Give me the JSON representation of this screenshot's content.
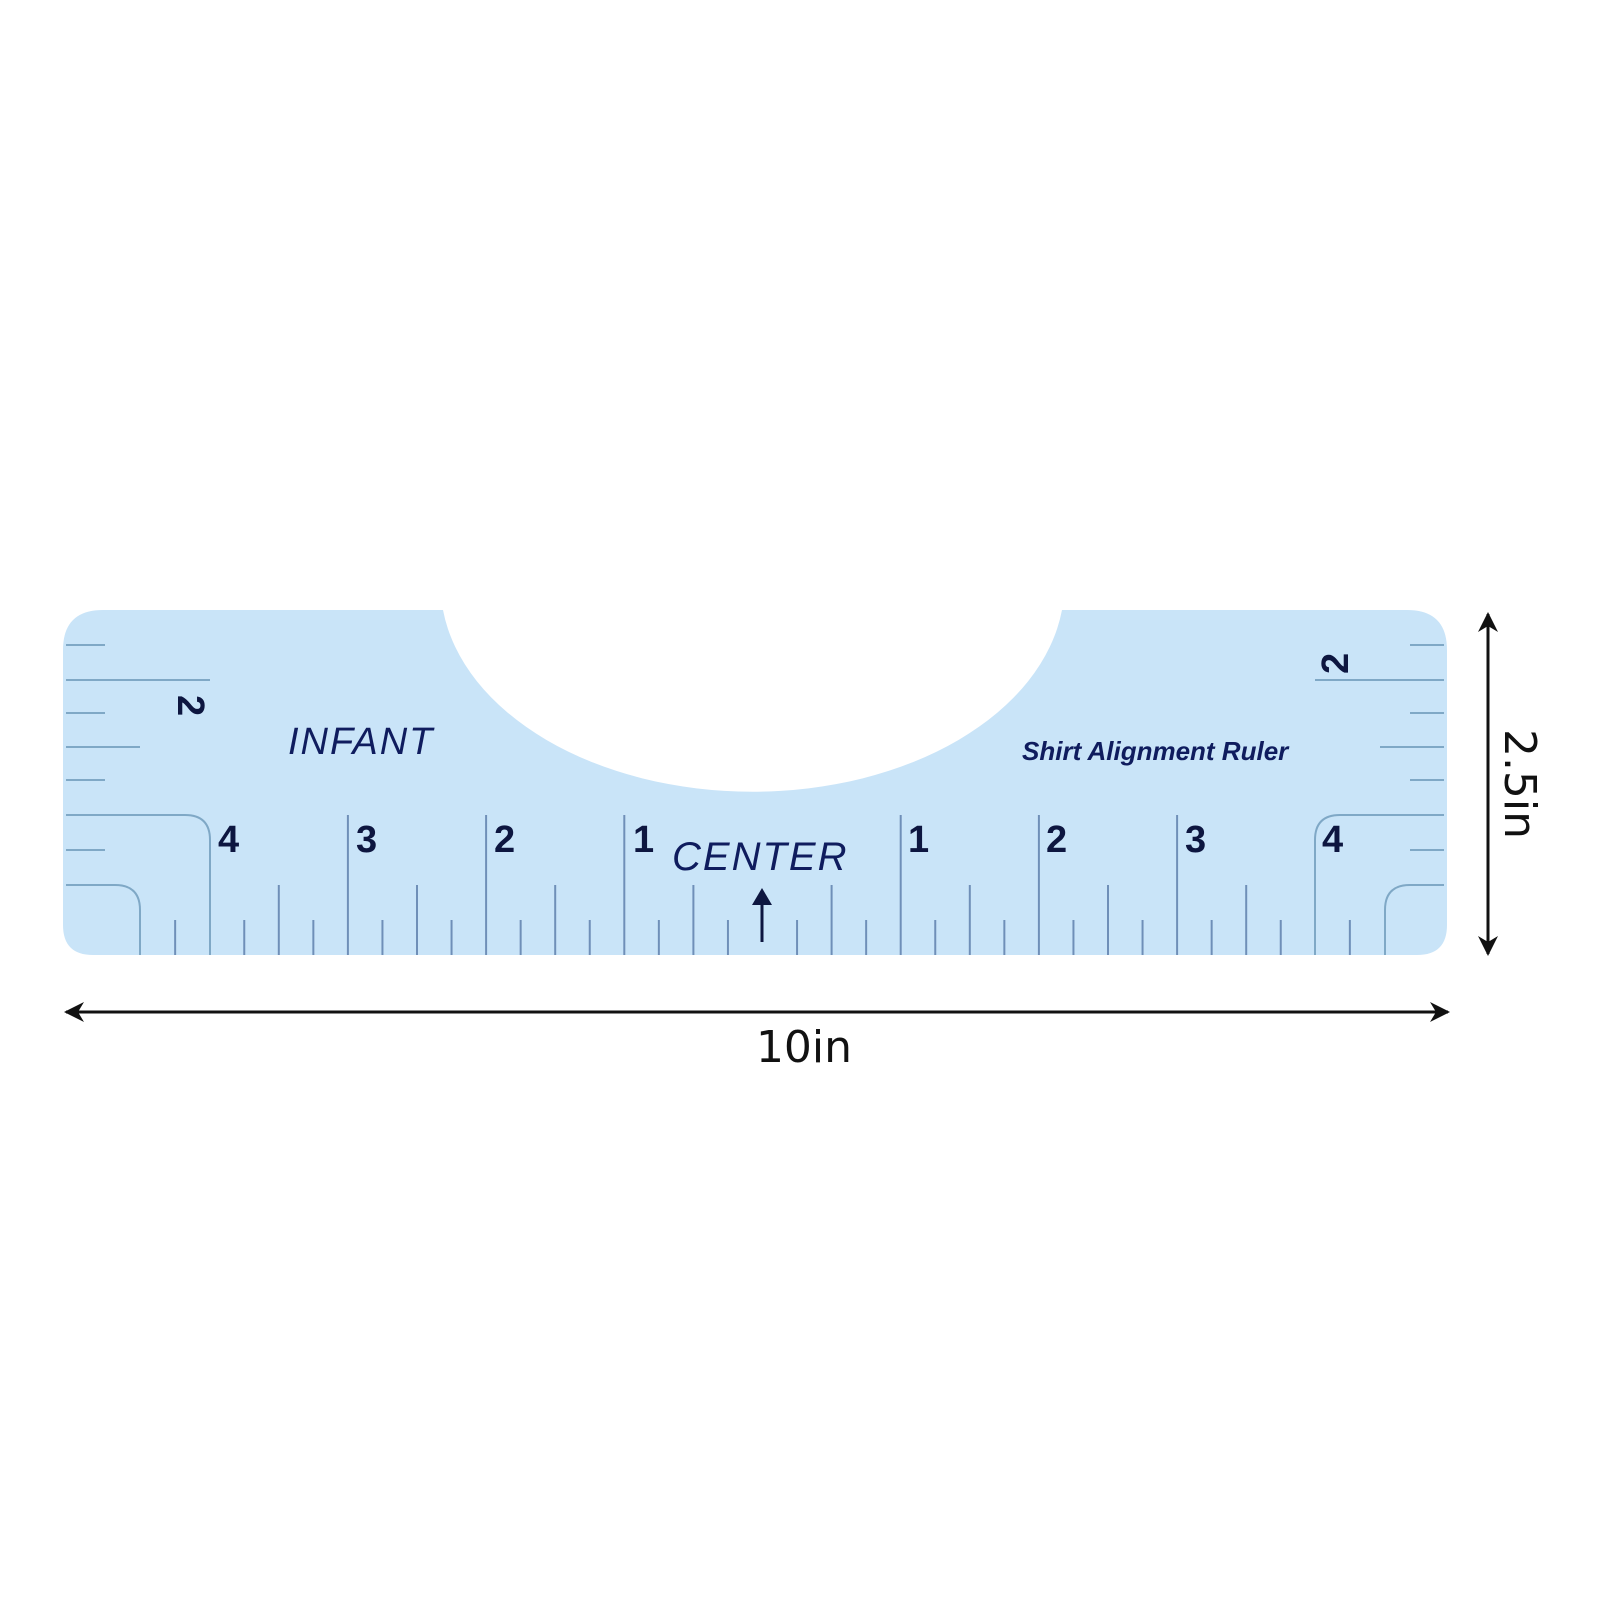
{
  "ruler": {
    "title": "INFANT",
    "subtitle": "Shirt Alignment Ruler",
    "center_label": "CENTER",
    "left_numbers": [
      "4",
      "3",
      "2",
      "1"
    ],
    "right_numbers": [
      "1",
      "2",
      "3",
      "4"
    ],
    "vertical_number_left": "2",
    "vertical_number_right": "2",
    "color": "#c9e4f8",
    "text_color": "#0f1c5e"
  },
  "dimensions": {
    "width_label": "10in",
    "height_label": "2.5in"
  }
}
